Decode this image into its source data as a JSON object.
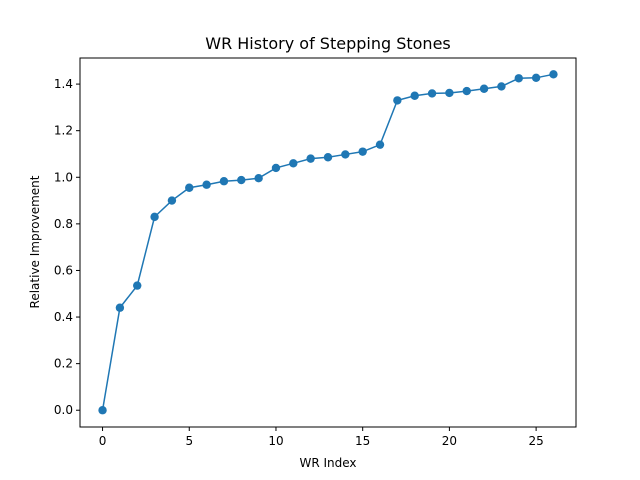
{
  "chart_data": {
    "type": "line",
    "title": "WR History of Stepping Stones",
    "xlabel": "WR Index",
    "ylabel": "Relative Improvement",
    "xlim": [
      -1.3,
      27.3
    ],
    "ylim": [
      -0.072,
      1.512
    ],
    "xticks": [
      0,
      5,
      10,
      15,
      20,
      25
    ],
    "yticks": [
      0.0,
      0.2,
      0.4,
      0.6,
      0.8,
      1.0,
      1.2,
      1.4
    ],
    "xtick_labels": [
      "0",
      "5",
      "10",
      "15",
      "20",
      "25"
    ],
    "ytick_labels": [
      "0.0",
      "0.2",
      "0.4",
      "0.6",
      "0.8",
      "1.0",
      "1.2",
      "1.4"
    ],
    "grid": false,
    "marker": "circle",
    "color": "#1f77b4",
    "series": [
      {
        "x": [
          0,
          1,
          2,
          3,
          4,
          5,
          6,
          7,
          8,
          9,
          10,
          11,
          12,
          13,
          14,
          15,
          16,
          17,
          18,
          19,
          20,
          21,
          22,
          23,
          24,
          25,
          26
        ],
        "values": [
          0.0,
          0.44,
          0.535,
          0.83,
          0.9,
          0.955,
          0.968,
          0.983,
          0.988,
          0.996,
          1.04,
          1.06,
          1.08,
          1.086,
          1.098,
          1.11,
          1.14,
          1.33,
          1.35,
          1.36,
          1.362,
          1.37,
          1.38,
          1.39,
          1.425,
          1.427,
          1.442
        ]
      }
    ]
  }
}
